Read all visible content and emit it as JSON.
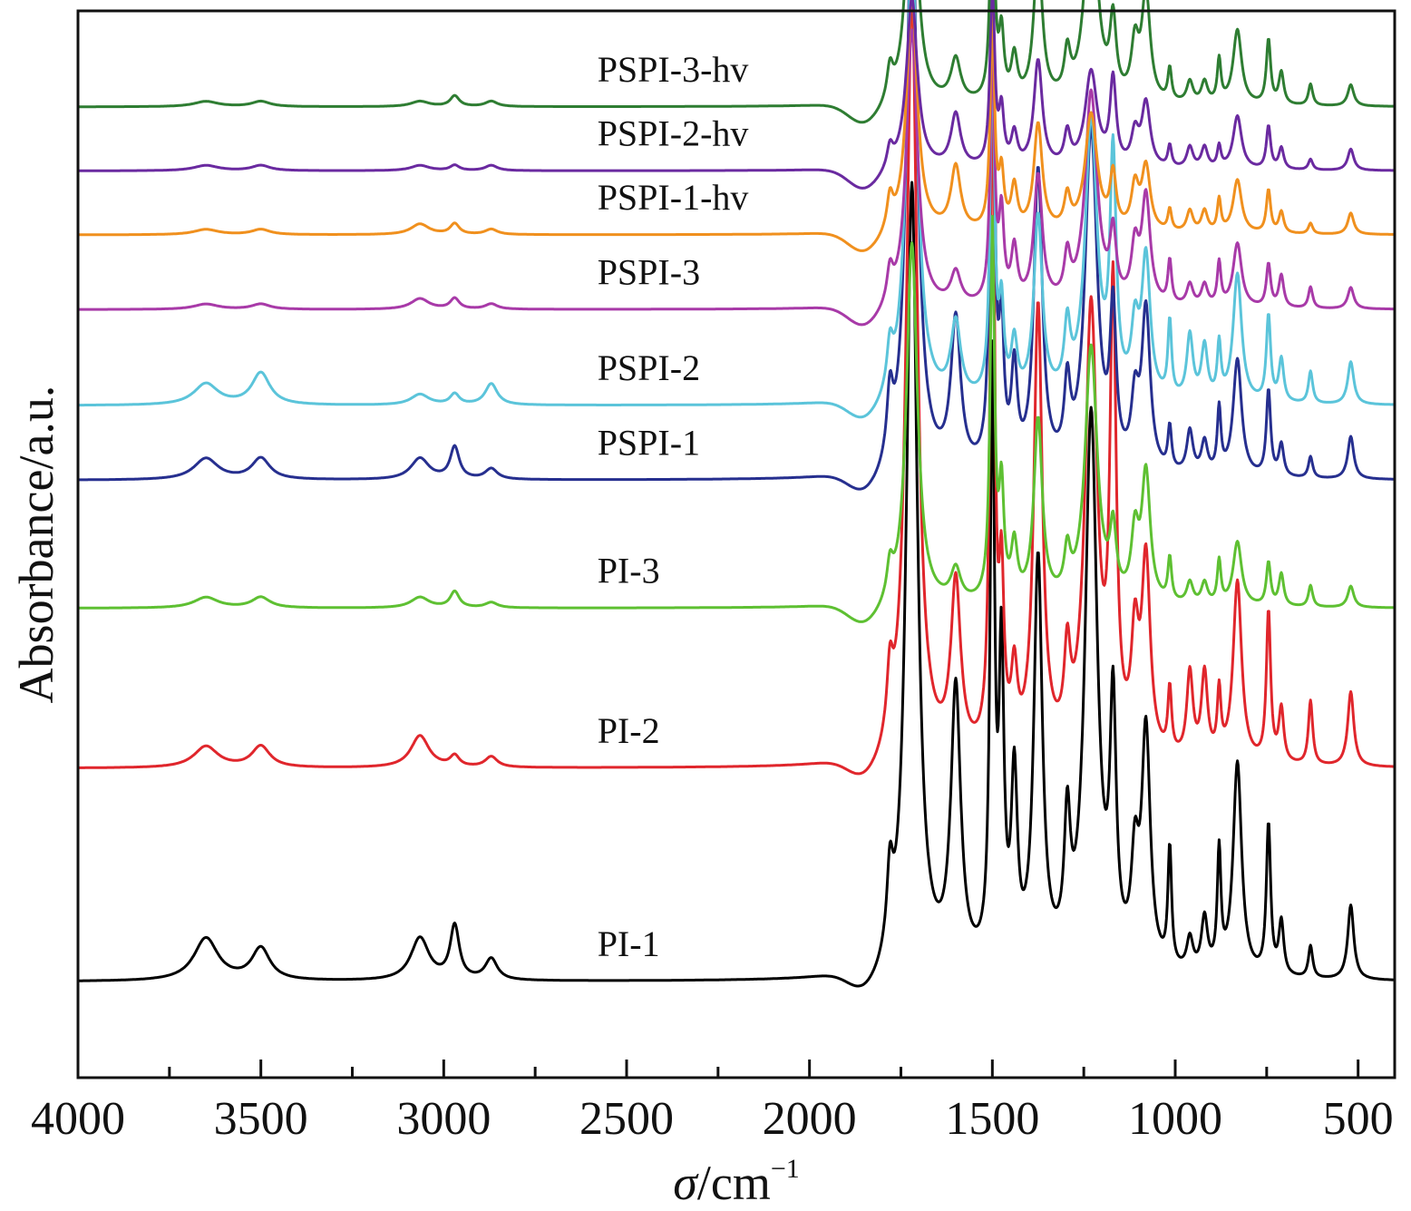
{
  "chart_data": {
    "type": "line",
    "title": "",
    "xlabel_symbol": "σ",
    "xlabel_unit": "/cm",
    "xlabel_exponent": "−1",
    "ylabel": "Absorbance/a.u.",
    "xlim": [
      4000,
      400
    ],
    "x_reversed": true,
    "y_ticks_shown": false,
    "x_ticks_major": [
      4000,
      3500,
      3000,
      2500,
      2000,
      1500,
      1000,
      500
    ],
    "x_tick_labels": [
      "4000",
      "3500",
      "3000",
      "2500",
      "2000",
      "1500",
      "1000",
      "500"
    ],
    "x_ticks_minor": [
      3750,
      3250,
      2750,
      2250,
      1750,
      1250,
      750
    ],
    "ylim": [
      0,
      1
    ],
    "peak_positions": [
      {
        "x": 1780,
        "w": 10
      },
      {
        "x": 1720,
        "w": 18
      },
      {
        "x": 1600,
        "w": 16
      },
      {
        "x": 1500,
        "w": 7
      },
      {
        "x": 1475,
        "w": 8
      },
      {
        "x": 1440,
        "w": 10
      },
      {
        "x": 1375,
        "w": 14
      },
      {
        "x": 1295,
        "w": 10
      },
      {
        "x": 1230,
        "w": 20
      },
      {
        "x": 1170,
        "w": 10
      },
      {
        "x": 1110,
        "w": 12
      },
      {
        "x": 1080,
        "w": 14
      },
      {
        "x": 1015,
        "w": 6
      },
      {
        "x": 960,
        "w": 10
      },
      {
        "x": 920,
        "w": 10
      },
      {
        "x": 880,
        "w": 6
      },
      {
        "x": 830,
        "w": 14
      },
      {
        "x": 745,
        "w": 7
      },
      {
        "x": 710,
        "w": 8
      },
      {
        "x": 630,
        "w": 7
      },
      {
        "x": 520,
        "w": 10
      }
    ],
    "high_freq_peaks": [
      {
        "x": 3650,
        "w": 40
      },
      {
        "x": 3500,
        "w": 30
      },
      {
        "x": 3065,
        "w": 30
      },
      {
        "x": 2970,
        "w": 15
      },
      {
        "x": 2870,
        "w": 20
      }
    ],
    "series": [
      {
        "name": "PI-1",
        "color": "#000000",
        "baseline": 0.09,
        "peaks": [
          0.07,
          0.74,
          0.26,
          0.55,
          0.28,
          0.17,
          0.38,
          0.12,
          0.52,
          0.23,
          0.09,
          0.22,
          0.11,
          0.03,
          0.05,
          0.11,
          0.2,
          0.14,
          0.05,
          0.03,
          0.07
        ],
        "hf": [
          0.04,
          0.03,
          0.04,
          0.05,
          0.02
        ]
      },
      {
        "name": "PI-2",
        "color": "#e0262c",
        "baseline": 0.29,
        "peaks": [
          0.06,
          0.72,
          0.16,
          0.66,
          0.15,
          0.07,
          0.42,
          0.08,
          0.42,
          0.42,
          0.1,
          0.18,
          0.06,
          0.08,
          0.08,
          0.06,
          0.17,
          0.14,
          0.05,
          0.06,
          0.07
        ],
        "hf": [
          0.02,
          0.02,
          0.03,
          0.01,
          0.01
        ]
      },
      {
        "name": "PI-3",
        "color": "#5ec032",
        "baseline": 0.44,
        "peaks": [
          0.03,
          0.34,
          0.03,
          0.35,
          0.1,
          0.05,
          0.17,
          0.04,
          0.24,
          0.06,
          0.06,
          0.12,
          0.04,
          0.02,
          0.02,
          0.04,
          0.06,
          0.04,
          0.03,
          0.02,
          0.02
        ],
        "hf": [
          0.01,
          0.01,
          0.01,
          0.015,
          0.005
        ]
      },
      {
        "name": "PSPI-1",
        "color": "#262f8f",
        "baseline": 0.56,
        "peaks": [
          0.06,
          0.54,
          0.14,
          0.5,
          0.12,
          0.09,
          0.28,
          0.07,
          0.32,
          0.14,
          0.06,
          0.15,
          0.04,
          0.04,
          0.03,
          0.06,
          0.11,
          0.08,
          0.03,
          0.02,
          0.04
        ],
        "hf": [
          0.02,
          0.02,
          0.02,
          0.03,
          0.01
        ]
      },
      {
        "name": "PSPI-2",
        "color": "#5bc4da",
        "baseline": 0.63,
        "peaks": [
          0.04,
          0.43,
          0.07,
          0.33,
          0.08,
          0.05,
          0.17,
          0.06,
          0.26,
          0.22,
          0.06,
          0.13,
          0.07,
          0.06,
          0.05,
          0.05,
          0.12,
          0.08,
          0.04,
          0.03,
          0.04
        ],
        "hf": [
          0.02,
          0.03,
          0.01,
          0.01,
          0.02
        ]
      },
      {
        "name": "PSPI-3",
        "color": "#a83aa8",
        "baseline": 0.72,
        "peaks": [
          0.03,
          0.26,
          0.03,
          0.24,
          0.08,
          0.05,
          0.12,
          0.04,
          0.2,
          0.06,
          0.05,
          0.1,
          0.04,
          0.02,
          0.02,
          0.04,
          0.06,
          0.04,
          0.03,
          0.02,
          0.02
        ],
        "hf": [
          0.005,
          0.005,
          0.01,
          0.01,
          0.005
        ]
      },
      {
        "name": "PSPI-1-hv",
        "color": "#f0901e",
        "baseline": 0.79,
        "peaks": [
          0.03,
          0.22,
          0.06,
          0.2,
          0.05,
          0.04,
          0.1,
          0.03,
          0.11,
          0.05,
          0.04,
          0.06,
          0.02,
          0.02,
          0.02,
          0.03,
          0.05,
          0.04,
          0.02,
          0.01,
          0.02
        ],
        "hf": [
          0.005,
          0.005,
          0.01,
          0.01,
          0.005
        ]
      },
      {
        "name": "PSPI-2-hv",
        "color": "#6a2aa0",
        "baseline": 0.85,
        "peaks": [
          0.02,
          0.16,
          0.05,
          0.18,
          0.05,
          0.03,
          0.1,
          0.03,
          0.09,
          0.08,
          0.03,
          0.06,
          0.02,
          0.02,
          0.02,
          0.02,
          0.05,
          0.04,
          0.02,
          0.01,
          0.02
        ],
        "hf": [
          0.005,
          0.005,
          0.005,
          0.005,
          0.005
        ]
      },
      {
        "name": "PSPI-3-hv",
        "color": "#2e7d32",
        "baseline": 0.91,
        "peaks": [
          0.03,
          0.24,
          0.04,
          0.22,
          0.06,
          0.04,
          0.14,
          0.04,
          0.2,
          0.07,
          0.05,
          0.1,
          0.03,
          0.02,
          0.02,
          0.04,
          0.07,
          0.06,
          0.03,
          0.02,
          0.02
        ],
        "hf": [
          0.005,
          0.005,
          0.005,
          0.01,
          0.005
        ]
      }
    ]
  }
}
